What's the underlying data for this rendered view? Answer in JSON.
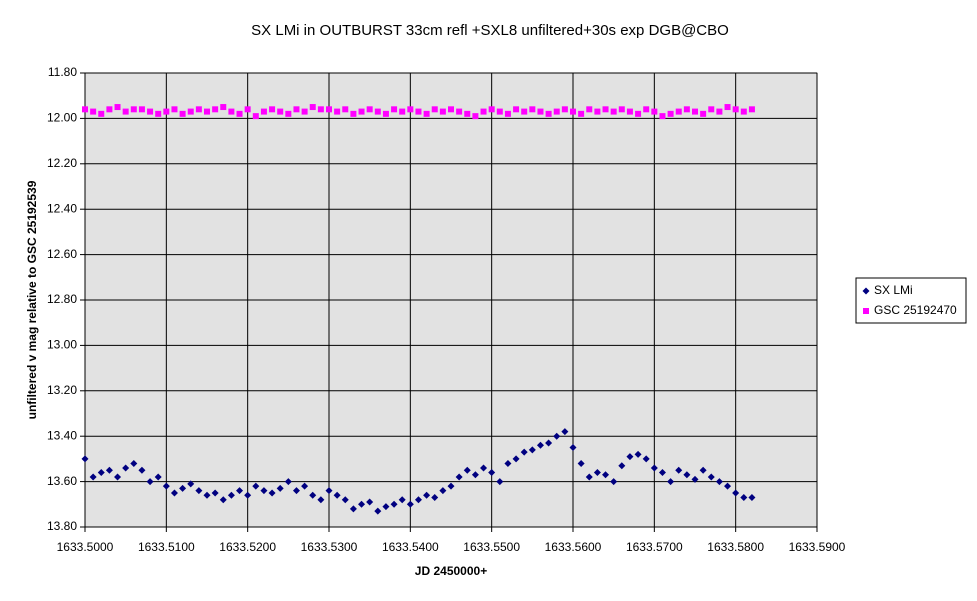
{
  "chart_data": {
    "type": "scatter",
    "title": "SX LMi in OUTBURST 33cm refl +SXL8 unfiltered+30s exp DGB@CBO",
    "x_label": "JD 2450000+",
    "y_label": "unfiltered v mag relative to GSC 25192539",
    "x": [
      1633.5,
      1633.501,
      1633.502,
      1633.503,
      1633.504,
      1633.505,
      1633.506,
      1633.507,
      1633.508,
      1633.509,
      1633.51,
      1633.511,
      1633.512,
      1633.513,
      1633.514,
      1633.515,
      1633.516,
      1633.517,
      1633.518,
      1633.519,
      1633.52,
      1633.521,
      1633.522,
      1633.523,
      1633.524,
      1633.525,
      1633.526,
      1633.527,
      1633.528,
      1633.529,
      1633.53,
      1633.531,
      1633.532,
      1633.533,
      1633.534,
      1633.535,
      1633.536,
      1633.537,
      1633.538,
      1633.539,
      1633.54,
      1633.541,
      1633.542,
      1633.543,
      1633.544,
      1633.545,
      1633.546,
      1633.547,
      1633.548,
      1633.549,
      1633.55,
      1633.551,
      1633.552,
      1633.553,
      1633.554,
      1633.555,
      1633.556,
      1633.557,
      1633.558,
      1633.559,
      1633.56,
      1633.561,
      1633.562,
      1633.563,
      1633.564,
      1633.565,
      1633.566,
      1633.567,
      1633.568,
      1633.569,
      1633.57,
      1633.571,
      1633.572,
      1633.573,
      1633.574,
      1633.575,
      1633.576,
      1633.577,
      1633.578,
      1633.579,
      1633.58,
      1633.581,
      1633.582
    ],
    "series": [
      {
        "name": "SX LMi",
        "color": "#000080",
        "marker": "diamond",
        "values": [
          13.5,
          13.58,
          13.56,
          13.55,
          13.58,
          13.54,
          13.52,
          13.55,
          13.6,
          13.58,
          13.62,
          13.65,
          13.63,
          13.61,
          13.64,
          13.66,
          13.65,
          13.68,
          13.66,
          13.64,
          13.66,
          13.62,
          13.64,
          13.65,
          13.63,
          13.6,
          13.64,
          13.62,
          13.66,
          13.68,
          13.64,
          13.66,
          13.68,
          13.72,
          13.7,
          13.69,
          13.73,
          13.71,
          13.7,
          13.68,
          13.7,
          13.68,
          13.66,
          13.67,
          13.64,
          13.62,
          13.58,
          13.55,
          13.57,
          13.54,
          13.56,
          13.6,
          13.52,
          13.5,
          13.47,
          13.46,
          13.44,
          13.43,
          13.4,
          13.38,
          13.45,
          13.52,
          13.58,
          13.56,
          13.57,
          13.6,
          13.53,
          13.49,
          13.48,
          13.5,
          13.54,
          13.56,
          13.6,
          13.55,
          13.57,
          13.59,
          13.55,
          13.58,
          13.6,
          13.62,
          13.65,
          13.67,
          13.67
        ]
      },
      {
        "name": "GSC 25192470",
        "color": "#ff00ff",
        "marker": "square",
        "values": [
          11.96,
          11.97,
          11.98,
          11.96,
          11.95,
          11.97,
          11.96,
          11.96,
          11.97,
          11.98,
          11.97,
          11.96,
          11.98,
          11.97,
          11.96,
          11.97,
          11.96,
          11.95,
          11.97,
          11.98,
          11.96,
          11.99,
          11.97,
          11.96,
          11.97,
          11.98,
          11.96,
          11.97,
          11.95,
          11.96,
          11.96,
          11.97,
          11.96,
          11.98,
          11.97,
          11.96,
          11.97,
          11.98,
          11.96,
          11.97,
          11.96,
          11.97,
          11.98,
          11.96,
          11.97,
          11.96,
          11.97,
          11.98,
          11.99,
          11.97,
          11.96,
          11.97,
          11.98,
          11.96,
          11.97,
          11.96,
          11.97,
          11.98,
          11.97,
          11.96,
          11.97,
          11.98,
          11.96,
          11.97,
          11.96,
          11.97,
          11.96,
          11.97,
          11.98,
          11.96,
          11.97,
          11.99,
          11.98,
          11.97,
          11.96,
          11.97,
          11.98,
          11.96,
          11.97,
          11.95,
          11.96,
          11.97,
          11.96
        ]
      }
    ],
    "xlim": [
      1633.5,
      1633.59
    ],
    "xticks": [
      {
        "value": 1633.5,
        "label": "1633.5000"
      },
      {
        "value": 1633.51,
        "label": "1633.5100"
      },
      {
        "value": 1633.52,
        "label": "1633.5200"
      },
      {
        "value": 1633.53,
        "label": "1633.5300"
      },
      {
        "value": 1633.54,
        "label": "1633.5400"
      },
      {
        "value": 1633.55,
        "label": "1633.5500"
      },
      {
        "value": 1633.56,
        "label": "1633.5600"
      },
      {
        "value": 1633.57,
        "label": "1633.5700"
      },
      {
        "value": 1633.58,
        "label": "1633.5800"
      },
      {
        "value": 1633.59,
        "label": "1633.5900"
      }
    ],
    "ylim": [
      13.8,
      11.8
    ],
    "yticks": [
      {
        "value": 11.8,
        "label": "11.80"
      },
      {
        "value": 12.0,
        "label": "12.00"
      },
      {
        "value": 12.2,
        "label": "12.20"
      },
      {
        "value": 12.4,
        "label": "12.40"
      },
      {
        "value": 12.6,
        "label": "12.60"
      },
      {
        "value": 12.8,
        "label": "12.80"
      },
      {
        "value": 13.0,
        "label": "13.00"
      },
      {
        "value": 13.2,
        "label": "13.20"
      },
      {
        "value": 13.4,
        "label": "13.40"
      },
      {
        "value": 13.6,
        "label": "13.60"
      },
      {
        "value": 13.8,
        "label": "13.80"
      }
    ],
    "y_inverted": true,
    "grid": true,
    "legend": "right"
  }
}
